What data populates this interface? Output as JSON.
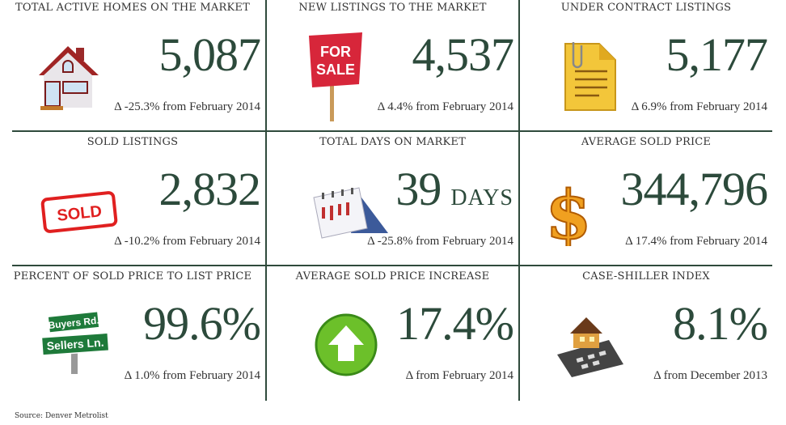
{
  "colors": {
    "accent": "#2c4a3b",
    "divider": "#2f4a3c"
  },
  "cells": [
    {
      "title": "TOTAL ACTIVE HOMES ON THE MARKET",
      "value": "5,087",
      "delta": "Δ -25.3% from February 2014",
      "icon": "house-icon"
    },
    {
      "title": "NEW LISTINGS TO THE MARKET",
      "value": "4,537",
      "delta": "Δ 4.4% from February 2014",
      "icon": "for-sale-sign-icon",
      "sign_text": "FOR SALE"
    },
    {
      "title": "UNDER CONTRACT LISTINGS",
      "value": "5,177",
      "delta": "Δ 6.9% from February 2014",
      "icon": "document-clip-icon"
    },
    {
      "title": "SOLD LISTINGS",
      "value": "2,832",
      "delta": "Δ -10.2% from February 2014",
      "icon": "sold-stamp-icon",
      "stamp_text": "SOLD"
    },
    {
      "title": "TOTAL DAYS ON MARKET",
      "value": "39",
      "unit": "DAYS",
      "delta": "Δ -25.8% from February 2014",
      "icon": "calendar-icon"
    },
    {
      "title": "AVERAGE SOLD PRICE",
      "value": "344,796",
      "delta": "Δ 17.4% from February 2014",
      "icon": "dollar-icon"
    },
    {
      "title": "PERCENT OF SOLD PRICE TO LIST PRICE",
      "value": "99.6%",
      "delta": "Δ 1.0% from February 2014",
      "icon": "street-sign-icon",
      "sign_top": "Buyers Rd.",
      "sign_bottom": "Sellers Ln."
    },
    {
      "title": "AVERAGE SOLD PRICE INCREASE",
      "value": "17.4%",
      "delta": "Δ from February 2014",
      "icon": "up-arrow-icon"
    },
    {
      "title": "CASE-SHILLER INDEX",
      "value": "8.1%",
      "delta": "Δ from December 2013",
      "icon": "house-calculator-icon"
    }
  ],
  "source": "Source: Denver Metrolist"
}
